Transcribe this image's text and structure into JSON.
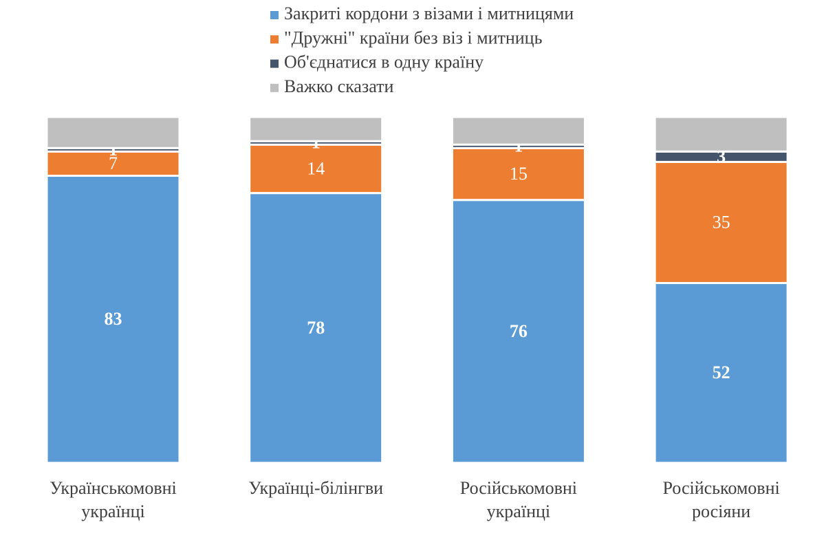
{
  "chart_data": {
    "type": "stacked_bar",
    "categories": [
      [
        "Українськомовні",
        "українці"
      ],
      [
        "Українці-білінгви"
      ],
      [
        "Російськомовні",
        "українці"
      ],
      [
        "Російськомовні",
        "росіяни"
      ]
    ],
    "series": [
      {
        "name": "Закриті кордони з візами і митницями",
        "color": "#5b9bd5",
        "values": [
          83,
          78,
          76,
          52
        ],
        "labels": true
      },
      {
        "name": "\"Дружні\" країни без віз і митниць",
        "color": "#ed7d31",
        "values": [
          7,
          14,
          15,
          35
        ],
        "labels": true
      },
      {
        "name": "Об'єднатися в одну країну",
        "color": "#44546a",
        "values": [
          1,
          1,
          1,
          3
        ],
        "labels": true
      },
      {
        "name": "Важко сказати",
        "color": "#bfbfbf",
        "values": [
          9,
          7,
          8,
          10
        ],
        "labels": false
      }
    ],
    "ylim": [
      0,
      100
    ],
    "legend": "top"
  }
}
